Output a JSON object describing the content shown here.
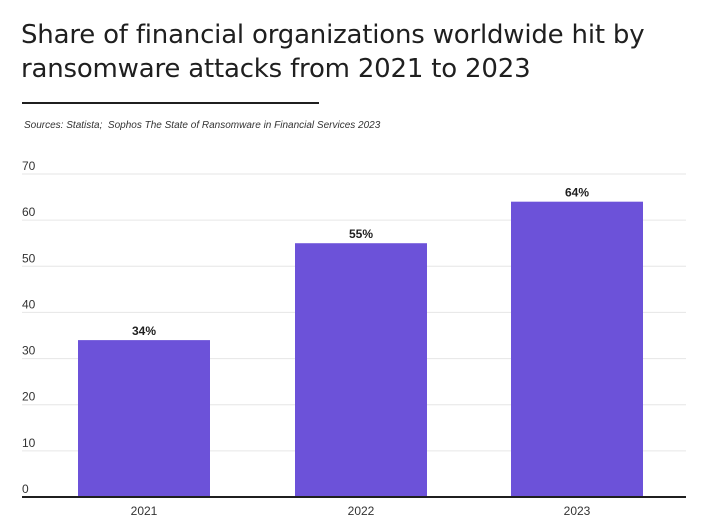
{
  "title": "Share of financial organizations worldwide hit by ransomware attacks from 2021 to 2023",
  "source": "Sources: Statista;  Sophos The State of Ransomware in Financial Services 2023",
  "colors": {
    "bar": "#6c52d9",
    "grid": "#e6e6e6",
    "axis": "#1f1f1f",
    "text": "#333333"
  },
  "chart_data": {
    "type": "bar",
    "categories": [
      "2021",
      "2022",
      "2023"
    ],
    "values": [
      34,
      55,
      64
    ],
    "data_labels": [
      "34%",
      "55%",
      "64%"
    ],
    "xlabel": "",
    "ylabel": "",
    "ylim": [
      0,
      70
    ],
    "yticks": [
      0,
      10,
      20,
      30,
      40,
      50,
      60,
      70
    ],
    "grid": true,
    "legend": "none"
  }
}
